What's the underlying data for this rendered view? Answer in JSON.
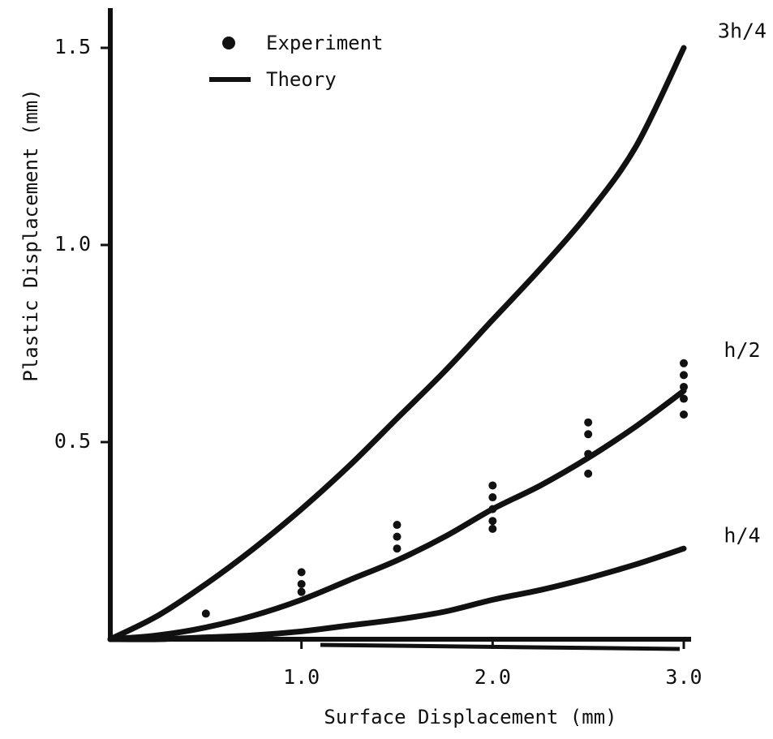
{
  "colors": {
    "ink": "#111111",
    "background": "#ffffff"
  },
  "chart_data": {
    "type": "line",
    "title": "",
    "xlabel": "Surface Displacement (mm)",
    "ylabel": "Plastic Displacement (mm)",
    "xlim": [
      0,
      3.0
    ],
    "ylim": [
      0,
      1.6
    ],
    "x_ticks": [
      {
        "value": 1.0,
        "label": "1.0"
      },
      {
        "value": 2.0,
        "label": "2.0"
      },
      {
        "value": 3.0,
        "label": "3.0"
      }
    ],
    "y_ticks": [
      {
        "value": 0.5,
        "label": "0.5"
      },
      {
        "value": 1.0,
        "label": "1.0"
      },
      {
        "value": 1.5,
        "label": "1.5"
      }
    ],
    "grid": false,
    "legend": {
      "placement": "top-left",
      "entries": [
        {
          "label": "Experiment",
          "marker": "dot"
        },
        {
          "label": "Theory",
          "marker": "line"
        }
      ]
    },
    "series": [
      {
        "name": "3h/4",
        "kind": "theory",
        "x": [
          0,
          0.25,
          0.5,
          0.75,
          1.0,
          1.25,
          1.5,
          1.75,
          2.0,
          2.25,
          2.5,
          2.75,
          3.0
        ],
        "y": [
          0,
          0.06,
          0.14,
          0.23,
          0.33,
          0.44,
          0.56,
          0.68,
          0.81,
          0.94,
          1.08,
          1.25,
          1.5
        ]
      },
      {
        "name": "h/2",
        "kind": "theory",
        "x": [
          0,
          0.25,
          0.5,
          0.75,
          1.0,
          1.25,
          1.5,
          1.75,
          2.0,
          2.25,
          2.5,
          2.75,
          3.0
        ],
        "y": [
          0,
          0.01,
          0.03,
          0.06,
          0.1,
          0.15,
          0.2,
          0.26,
          0.33,
          0.39,
          0.46,
          0.54,
          0.63
        ]
      },
      {
        "name": "h/4",
        "kind": "theory",
        "x": [
          0,
          0.25,
          0.5,
          0.75,
          1.0,
          1.25,
          1.5,
          1.75,
          2.0,
          2.25,
          2.5,
          2.75,
          3.0
        ],
        "y": [
          0,
          0.0,
          0.005,
          0.01,
          0.02,
          0.035,
          0.05,
          0.07,
          0.1,
          0.125,
          0.155,
          0.19,
          0.23
        ]
      },
      {
        "name": "Experiment",
        "kind": "experiment",
        "points": [
          {
            "x": 0.5,
            "y": 0.065
          },
          {
            "x": 1.0,
            "y": 0.17
          },
          {
            "x": 1.0,
            "y": 0.14
          },
          {
            "x": 1.0,
            "y": 0.12
          },
          {
            "x": 1.5,
            "y": 0.29
          },
          {
            "x": 1.5,
            "y": 0.26
          },
          {
            "x": 1.5,
            "y": 0.23
          },
          {
            "x": 2.0,
            "y": 0.39
          },
          {
            "x": 2.0,
            "y": 0.36
          },
          {
            "x": 2.0,
            "y": 0.33
          },
          {
            "x": 2.0,
            "y": 0.3
          },
          {
            "x": 2.0,
            "y": 0.28
          },
          {
            "x": 2.5,
            "y": 0.55
          },
          {
            "x": 2.5,
            "y": 0.52
          },
          {
            "x": 2.5,
            "y": 0.47
          },
          {
            "x": 2.5,
            "y": 0.42
          },
          {
            "x": 3.0,
            "y": 0.7
          },
          {
            "x": 3.0,
            "y": 0.67
          },
          {
            "x": 3.0,
            "y": 0.64
          },
          {
            "x": 3.0,
            "y": 0.61
          },
          {
            "x": 3.0,
            "y": 0.57
          }
        ]
      }
    ],
    "curve_labels": [
      {
        "series": "3h/4",
        "text": "3h/4"
      },
      {
        "series": "h/2",
        "text": "h/2"
      },
      {
        "series": "h/4",
        "text": "h/4"
      }
    ]
  }
}
